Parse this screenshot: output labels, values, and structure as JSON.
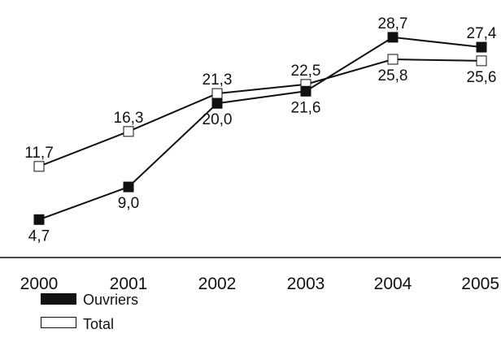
{
  "chart_data": {
    "type": "line",
    "categories": [
      "2000",
      "2001",
      "2002",
      "2003",
      "2004",
      "2005"
    ],
    "series": [
      {
        "name": "Ouvriers",
        "values": [
          4.7,
          9.0,
          20.0,
          21.6,
          28.7,
          27.4
        ],
        "labels": [
          "4,7",
          "9,0",
          "20,0",
          "21,6",
          "28,7",
          "27,4"
        ],
        "color": "#111111",
        "marker": "filled-square"
      },
      {
        "name": "Total",
        "values": [
          11.7,
          16.3,
          21.3,
          22.5,
          25.8,
          25.6
        ],
        "labels": [
          "11,7",
          "16,3",
          "21,3",
          "22,5",
          "25,8",
          "25,6"
        ],
        "color": "#111111",
        "marker": "hollow-square"
      }
    ],
    "title": "",
    "xlabel": "",
    "ylabel": "",
    "grid": false,
    "legend_position": "bottom-left"
  }
}
